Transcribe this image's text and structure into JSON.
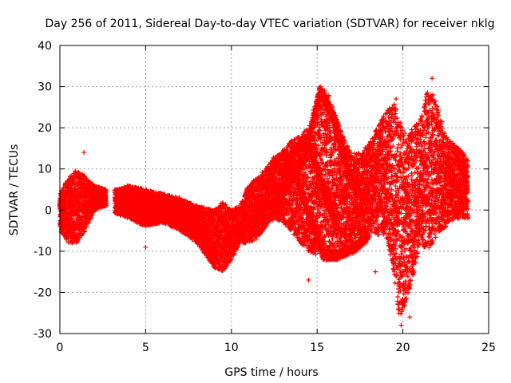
{
  "chart_data": {
    "type": "scatter",
    "title": "Day 256 of 2011, Sidereal Day-to-day VTEC variation (SDTVAR) for receiver nklg",
    "xlabel": "GPS time / hours",
    "ylabel": "SDTVAR / TECUs",
    "xlim": [
      0,
      25
    ],
    "ylim": [
      -30,
      40
    ],
    "xticks": [
      0,
      5,
      10,
      15,
      20,
      25
    ],
    "yticks": [
      -30,
      -20,
      -10,
      0,
      10,
      20,
      30,
      40
    ],
    "grid": true,
    "marker": "+",
    "color": "#ff0000",
    "series": [
      {
        "name": "SDTVAR",
        "envelope": [
          {
            "x": 0.0,
            "low": -5,
            "high": 4
          },
          {
            "x": 0.5,
            "low": -8,
            "high": 8
          },
          {
            "x": 1.0,
            "low": -8,
            "high": 10
          },
          {
            "x": 1.5,
            "low": -5,
            "high": 8
          },
          {
            "x": 2.0,
            "low": 0,
            "high": 6
          },
          {
            "x": 2.7,
            "low": 1,
            "high": 5
          },
          {
            "x": 3.3,
            "low": -1,
            "high": 5
          },
          {
            "x": 4.0,
            "low": -2,
            "high": 6
          },
          {
            "x": 5.0,
            "low": -4,
            "high": 5
          },
          {
            "x": 6.0,
            "low": -3,
            "high": 4
          },
          {
            "x": 7.0,
            "low": -5,
            "high": 3
          },
          {
            "x": 8.0,
            "low": -8,
            "high": 1
          },
          {
            "x": 9.0,
            "low": -14,
            "high": 0
          },
          {
            "x": 9.5,
            "low": -15,
            "high": 2
          },
          {
            "x": 10.0,
            "low": -12,
            "high": 0
          },
          {
            "x": 10.5,
            "low": -8,
            "high": 1
          },
          {
            "x": 11.0,
            "low": -8,
            "high": 6
          },
          {
            "x": 11.5,
            "low": -7,
            "high": 8
          },
          {
            "x": 12.0,
            "low": -4,
            "high": 10
          },
          {
            "x": 12.5,
            "low": -2,
            "high": 13
          },
          {
            "x": 13.0,
            "low": -3,
            "high": 14
          },
          {
            "x": 13.5,
            "low": -5,
            "high": 17
          },
          {
            "x": 14.0,
            "low": -8,
            "high": 18
          },
          {
            "x": 14.5,
            "low": -10,
            "high": 20
          },
          {
            "x": 15.0,
            "low": -12,
            "high": 24
          },
          {
            "x": 15.3,
            "low": -12,
            "high": 29
          },
          {
            "x": 15.6,
            "low": -11,
            "high": 29
          },
          {
            "x": 16.0,
            "low": -10,
            "high": 24
          },
          {
            "x": 16.5,
            "low": -9,
            "high": 18
          },
          {
            "x": 17.0,
            "low": -8,
            "high": 14
          },
          {
            "x": 17.5,
            "low": -6,
            "high": 14
          },
          {
            "x": 18.0,
            "low": -5,
            "high": 16
          },
          {
            "x": 18.5,
            "low": -6,
            "high": 20
          },
          {
            "x": 19.0,
            "low": -6,
            "high": 24
          },
          {
            "x": 19.5,
            "low": -16,
            "high": 26
          },
          {
            "x": 19.8,
            "low": -27,
            "high": 22
          },
          {
            "x": 20.2,
            "low": -22,
            "high": 18
          },
          {
            "x": 20.6,
            "low": -16,
            "high": 20
          },
          {
            "x": 21.0,
            "low": -8,
            "high": 22
          },
          {
            "x": 21.5,
            "low": -10,
            "high": 30
          },
          {
            "x": 22.0,
            "low": -6,
            "high": 26
          },
          {
            "x": 22.5,
            "low": -4,
            "high": 18
          },
          {
            "x": 23.0,
            "low": -2,
            "high": 16
          },
          {
            "x": 23.5,
            "low": -2,
            "high": 14
          },
          {
            "x": 23.8,
            "low": -2,
            "high": 12
          }
        ],
        "outliers": [
          {
            "x": 1.4,
            "y": 14
          },
          {
            "x": 1.3,
            "y": -3
          },
          {
            "x": 5.0,
            "y": -9
          },
          {
            "x": 14.5,
            "y": -17
          },
          {
            "x": 18.4,
            "y": -15
          },
          {
            "x": 19.9,
            "y": -28
          },
          {
            "x": 20.4,
            "y": -26
          },
          {
            "x": 21.7,
            "y": 32
          },
          {
            "x": 19.6,
            "y": 27
          }
        ]
      }
    ]
  }
}
